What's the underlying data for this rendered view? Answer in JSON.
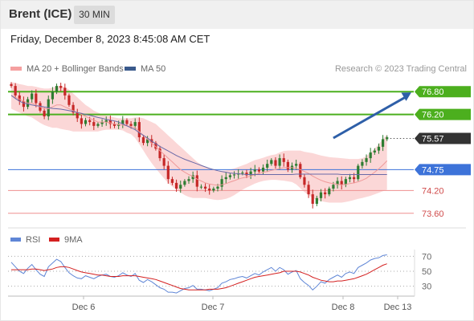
{
  "header": {
    "title": "Brent (ICE)",
    "timeframe": "30 MIN",
    "datetime": "Friday, December 8, 2023 8:45:08 AM CET"
  },
  "legend": {
    "ma20_label": "MA 20 + Bollinger Bands",
    "ma50_label": "MA 50",
    "copyright": "Research © 2023 Trading Central"
  },
  "rsi_legend": {
    "rsi_label": "RSI",
    "ma_label": "9MA"
  },
  "colors": {
    "candle_up": "#2e7d32",
    "candle_down": "#c62828",
    "bollinger_fill": "#f9c9c9",
    "ma20": "#ef9a9a",
    "ma50": "#6a6aa8",
    "resistance": "#4caf1e",
    "pivot": "#3d73d9",
    "support": "#ef8f8f",
    "current_price": "#333333",
    "rsi": "#5f86d6",
    "rsi_ma": "#d42020",
    "arrow": "#2e5fa8"
  },
  "chart_data": [
    {
      "type": "candlestick",
      "x_labels": [
        "Dec 6",
        "Dec 7",
        "Dec 8",
        "Dec 13"
      ],
      "ylim": [
        73.3,
        77.1
      ],
      "current_price": 75.57,
      "levels": [
        {
          "value": 76.8,
          "label": "76.80",
          "kind": "resistance"
        },
        {
          "value": 76.2,
          "label": "76.20",
          "kind": "resistance"
        },
        {
          "value": 75.57,
          "label": "75.57",
          "kind": "current"
        },
        {
          "value": 74.75,
          "label": "74.75",
          "kind": "pivot"
        },
        {
          "value": 74.2,
          "label": "74.20",
          "kind": "support"
        },
        {
          "value": 73.6,
          "label": "73.60",
          "kind": "support"
        }
      ],
      "arrow": {
        "from_index": 78,
        "from_price": 75.58,
        "to_price": 76.78
      },
      "closes": [
        76.95,
        76.7,
        76.55,
        76.4,
        76.6,
        76.75,
        76.5,
        76.3,
        76.15,
        76.6,
        76.8,
        76.95,
        76.9,
        76.7,
        76.45,
        76.25,
        76.1,
        75.95,
        76.05,
        76.0,
        75.9,
        75.95,
        76.0,
        76.05,
        75.95,
        75.9,
        75.95,
        76.05,
        75.95,
        75.9,
        76.0,
        75.6,
        75.45,
        75.55,
        75.45,
        75.3,
        75.05,
        74.85,
        74.5,
        74.4,
        74.25,
        74.35,
        74.45,
        74.5,
        74.6,
        74.3,
        74.3,
        74.25,
        74.2,
        74.25,
        74.3,
        74.5,
        74.55,
        74.6,
        74.62,
        74.65,
        74.67,
        74.6,
        74.7,
        74.75,
        74.7,
        74.8,
        74.9,
        75.0,
        74.85,
        75.05,
        74.95,
        74.75,
        74.85,
        74.9,
        74.55,
        74.35,
        74.1,
        73.85,
        74.0,
        74.15,
        74.1,
        74.25,
        74.35,
        74.45,
        74.35,
        74.5,
        74.55,
        74.5,
        74.85,
        74.95,
        75.05,
        75.2,
        75.25,
        75.35,
        75.55,
        75.6
      ],
      "ma20": [
        76.7,
        76.65,
        76.6,
        76.55,
        76.5,
        76.5,
        76.45,
        76.4,
        76.35,
        76.35,
        76.4,
        76.45,
        76.45,
        76.4,
        76.35,
        76.3,
        76.25,
        76.2,
        76.15,
        76.1,
        76.05,
        76.0,
        76.0,
        76.0,
        75.98,
        75.95,
        75.93,
        75.92,
        75.9,
        75.88,
        75.85,
        75.75,
        75.65,
        75.55,
        75.45,
        75.35,
        75.25,
        75.15,
        75.05,
        74.95,
        74.85,
        74.75,
        74.68,
        74.62,
        74.57,
        74.5,
        74.45,
        74.4,
        74.37,
        74.35,
        74.34,
        74.35,
        74.38,
        74.42,
        74.46,
        74.5,
        74.53,
        74.55,
        74.58,
        74.62,
        74.65,
        74.68,
        74.7,
        74.73,
        74.75,
        74.78,
        74.8,
        74.8,
        74.8,
        74.78,
        74.75,
        74.7,
        74.65,
        74.58,
        74.52,
        74.47,
        74.43,
        74.4,
        74.38,
        74.36,
        74.35,
        74.36,
        74.38,
        74.4,
        74.43,
        74.47,
        74.52,
        74.6,
        74.68,
        74.77,
        74.87,
        74.98
      ],
      "bb_upper": [
        77.05,
        77.03,
        77.0,
        76.98,
        76.95,
        76.95,
        76.93,
        76.9,
        76.88,
        76.88,
        76.9,
        76.95,
        76.95,
        76.92,
        76.85,
        76.75,
        76.65,
        76.55,
        76.45,
        76.38,
        76.3,
        76.25,
        76.2,
        76.18,
        76.15,
        76.12,
        76.1,
        76.1,
        76.1,
        76.1,
        76.12,
        76.12,
        76.1,
        76.05,
        76.0,
        75.95,
        75.85,
        75.75,
        75.65,
        75.55,
        75.45,
        75.35,
        75.25,
        75.15,
        75.05,
        74.95,
        74.88,
        74.82,
        74.78,
        74.75,
        74.72,
        74.72,
        74.73,
        74.75,
        74.78,
        74.82,
        74.86,
        74.9,
        74.95,
        75.0,
        75.03,
        75.06,
        75.1,
        75.13,
        75.15,
        75.2,
        75.24,
        75.25,
        75.25,
        75.25,
        75.25,
        75.22,
        75.2,
        75.18,
        75.15,
        75.12,
        75.1,
        75.08,
        75.07,
        75.06,
        75.05,
        75.04,
        75.03,
        75.03,
        75.03,
        75.05,
        75.1,
        75.2,
        75.3,
        75.42,
        75.55,
        75.68
      ],
      "bb_lower": [
        76.35,
        76.3,
        76.25,
        76.2,
        76.15,
        76.12,
        76.05,
        75.98,
        75.92,
        75.88,
        75.85,
        75.85,
        75.82,
        75.8,
        75.78,
        75.75,
        75.75,
        75.75,
        75.75,
        75.75,
        75.75,
        75.75,
        75.78,
        75.8,
        75.8,
        75.8,
        75.8,
        75.78,
        75.72,
        75.68,
        75.58,
        75.42,
        75.25,
        75.08,
        74.92,
        74.78,
        74.65,
        74.52,
        74.4,
        74.3,
        74.22,
        74.15,
        74.08,
        74.03,
        74.0,
        74.0,
        74.0,
        74.0,
        73.98,
        73.96,
        73.95,
        73.96,
        73.98,
        74.02,
        74.08,
        74.15,
        74.22,
        74.28,
        74.33,
        74.38,
        74.42,
        74.45,
        74.47,
        74.48,
        74.48,
        74.47,
        74.46,
        74.44,
        74.42,
        74.36,
        74.26,
        74.16,
        74.08,
        74.0,
        73.95,
        73.92,
        73.9,
        73.88,
        73.88,
        73.88,
        73.88,
        73.9,
        73.92,
        73.95,
        73.98,
        74.0,
        74.03,
        74.06,
        74.1,
        74.14,
        74.18,
        74.22
      ],
      "ma50": [
        76.7,
        76.62,
        76.55,
        76.5,
        76.47,
        76.45,
        76.43,
        76.42,
        76.4,
        76.38,
        76.36,
        76.35,
        76.34,
        76.32,
        76.3,
        76.28,
        76.25,
        76.23,
        76.2,
        76.18,
        76.15,
        76.12,
        76.1,
        76.07,
        76.05,
        76.03,
        76.0,
        75.95,
        75.9,
        75.85,
        75.8,
        75.72,
        75.65,
        75.58,
        75.5,
        75.43,
        75.36,
        75.3,
        75.24,
        75.18,
        75.12,
        75.07,
        75.02,
        74.98,
        74.94,
        74.9,
        74.86,
        74.82,
        74.78,
        74.75,
        74.72,
        74.7,
        74.68,
        74.66,
        74.65,
        74.64,
        74.63,
        74.62,
        74.62,
        74.62,
        74.62,
        74.62,
        74.62,
        74.62,
        74.62,
        74.62,
        74.62,
        74.62,
        74.62,
        74.63,
        74.63,
        74.63,
        74.63,
        74.63,
        74.63,
        74.63,
        74.63,
        74.63,
        74.63,
        74.63,
        74.62,
        74.62,
        74.62,
        74.62,
        74.62,
        74.62,
        74.62,
        74.62,
        74.62,
        74.62,
        74.62,
        74.62
      ]
    },
    {
      "type": "line",
      "title": "RSI",
      "ylim": [
        20,
        80
      ],
      "yticks": [
        70,
        50,
        30
      ],
      "x_labels": [
        "Dec 6",
        "Dec 7",
        "Dec 8",
        "Dec 13"
      ],
      "series": [
        {
          "name": "RSI",
          "values": [
            62,
            56,
            50,
            47,
            54,
            59,
            52,
            46,
            43,
            56,
            61,
            66,
            63,
            55,
            48,
            44,
            41,
            40,
            44,
            42,
            40,
            43,
            45,
            46,
            43,
            42,
            44,
            48,
            45,
            43,
            47,
            38,
            35,
            39,
            36,
            32,
            28,
            26,
            22,
            22,
            21,
            24,
            27,
            28,
            31,
            26,
            26,
            25,
            24,
            26,
            28,
            34,
            36,
            39,
            40,
            42,
            43,
            41,
            44,
            47,
            45,
            49,
            52,
            55,
            50,
            55,
            52,
            46,
            49,
            51,
            40,
            35,
            31,
            25,
            30,
            36,
            34,
            39,
            42,
            45,
            42,
            47,
            49,
            47,
            55,
            58,
            61,
            65,
            67,
            68,
            71,
            72
          ]
        },
        {
          "name": "9MA",
          "values": [
            52,
            52,
            52,
            52,
            52,
            53,
            53,
            52,
            51,
            52,
            53,
            55,
            56,
            56,
            55,
            53,
            51,
            49,
            48,
            47,
            46,
            45,
            45,
            44,
            43,
            43,
            43,
            44,
            44,
            44,
            44,
            43,
            42,
            41,
            40,
            39,
            37,
            35,
            33,
            31,
            29,
            27,
            26,
            25,
            25,
            25,
            25,
            25,
            26,
            26,
            26,
            27,
            28,
            30,
            32,
            34,
            36,
            38,
            40,
            42,
            43,
            44,
            45,
            46,
            47,
            48,
            50,
            50,
            50,
            50,
            49,
            47,
            45,
            42,
            40,
            38,
            37,
            36,
            36,
            37,
            37,
            38,
            39,
            40,
            42,
            44,
            46,
            49,
            52,
            55,
            58,
            60
          ]
        }
      ]
    }
  ]
}
